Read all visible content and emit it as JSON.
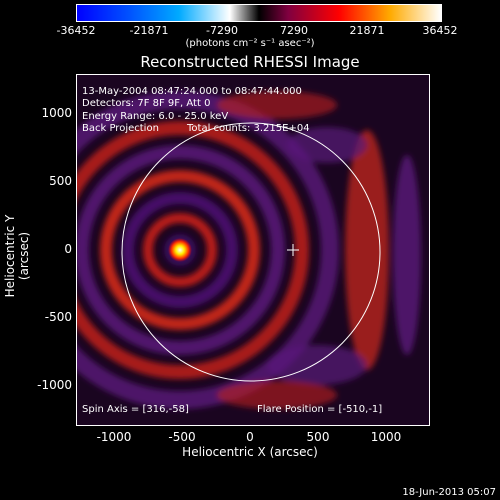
{
  "colorbar": {
    "ticks": [
      "-36452",
      "-21871",
      "-7290",
      "7290",
      "21871",
      "36452"
    ],
    "units": "(photons cm⁻² s⁻¹ asec⁻²)"
  },
  "plot": {
    "title": "Reconstructed RHESSI Image",
    "ylabel": "Heliocentric Y (arcsec)",
    "xlabel": "Heliocentric X (arcsec)",
    "yticks": [
      "1000",
      "500",
      "0",
      "-500",
      "-1000"
    ],
    "xticks": [
      "-1000",
      "-500",
      "0",
      "500",
      "1000"
    ],
    "info": {
      "time": "13-May-2004 08:47:24.000 to 08:47:44.000",
      "detectors": "Detectors: 7F 8F 9F, Att 0",
      "energy": "Energy Range: 6.0 - 25.0 keV",
      "method": "Back Projection",
      "counts": "Total counts: 3.215E+04",
      "spin_axis": "Spin Axis = [316,-58]",
      "flare_position": "Flare Position = [-510,-1]"
    }
  },
  "footer": {
    "date": "18-Jun-2013 05:07"
  }
}
